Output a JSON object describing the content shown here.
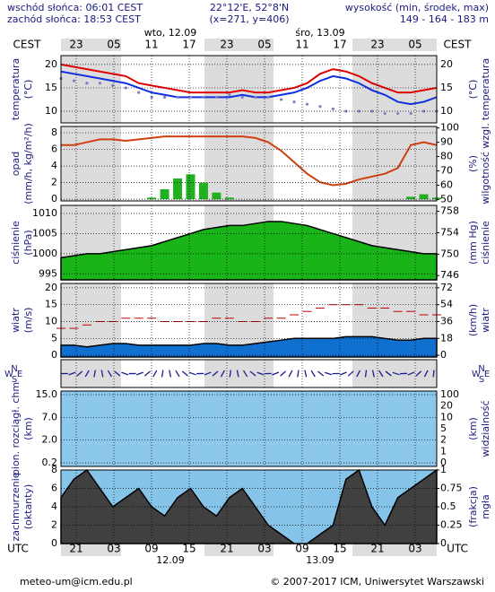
{
  "header": {
    "sunrise": "wschód słońca: 06:01 CEST",
    "sunset": "zachód słońca: 18:53 CEST",
    "coords": "22°12'E, 52°8'N",
    "grid_point": "(x=271, y=406)",
    "altitude_label": "wysokość (min, środek, max)",
    "altitude": "149 - 164 - 183 m"
  },
  "time_axis": {
    "top_zone": "CEST",
    "bottom_zone": "UTC",
    "top_hours": [
      "23",
      "05",
      "11",
      "17",
      "23",
      "05",
      "11",
      "17",
      "23",
      "05"
    ],
    "bottom_hours": [
      "21",
      "03",
      "09",
      "15",
      "21",
      "03",
      "09",
      "15",
      "21",
      "03"
    ],
    "top_days": [
      "wto, 12.09",
      "śro, 13.09"
    ],
    "bottom_days": [
      "12.09",
      "13.09"
    ]
  },
  "compass": [
    "N",
    "S",
    "W",
    "E"
  ],
  "panels": [
    {
      "left_label": [
        "temperatura",
        "(°C)"
      ],
      "right_label": [
        "(°C)",
        "temperatura"
      ],
      "background": "#ffffff",
      "ylim": [
        7.5,
        21.9
      ],
      "yticks": [
        20,
        15,
        10
      ],
      "series": [
        {
          "style": "line",
          "color": "#e00000",
          "values": [
            20,
            19.5,
            19,
            18.5,
            18,
            17.5,
            16,
            15.5,
            15,
            14.5,
            14,
            14,
            14,
            14,
            14.5,
            14,
            14,
            14.5,
            15,
            16,
            18,
            19,
            18.5,
            17.5,
            16,
            15,
            14,
            14,
            14.5,
            15
          ]
        },
        {
          "style": "line",
          "color": "#1030e0",
          "values": [
            18.5,
            18,
            17.5,
            17,
            16.5,
            16,
            15,
            14,
            13.5,
            13,
            13,
            13,
            13,
            13,
            13.5,
            13,
            13,
            13.5,
            14,
            15,
            16.5,
            17.5,
            17,
            16,
            14.5,
            13.5,
            12,
            11.5,
            12,
            13
          ]
        },
        {
          "style": "dots",
          "color": "#8080c0",
          "values": [
            17,
            16.5,
            16,
            16,
            15.5,
            15,
            14,
            13,
            13,
            13,
            13,
            13,
            13,
            13.5,
            13,
            13,
            13,
            12.5,
            12,
            11.5,
            11,
            10.5,
            10,
            10,
            10,
            9.5,
            9.5,
            9.5,
            10,
            10
          ]
        }
      ]
    },
    {
      "left_label": [
        "opad",
        "(mm/h, kg/m²/h)"
      ],
      "right_label": [
        "(%)",
        "wilgotność wzgl."
      ],
      "background": "#ffffff",
      "ylim": [
        -0.2,
        8.76
      ],
      "yticks": [
        8,
        6,
        4,
        2,
        0
      ],
      "y2lim": [
        49,
        101
      ],
      "y2ticks": [
        100,
        90,
        80,
        70,
        60,
        50
      ],
      "series": [
        {
          "style": "bars",
          "color": "#20b020",
          "values": [
            0,
            0,
            0,
            0,
            0,
            0,
            0,
            0.2,
            1.2,
            2.5,
            3,
            2,
            0.8,
            0.2,
            0,
            0,
            0,
            0,
            0,
            0,
            0,
            0,
            0,
            0,
            0,
            0,
            0,
            0.3,
            0.6,
            0.2
          ]
        },
        {
          "style": "line",
          "color": "#d04010",
          "axis": "y2",
          "values": [
            88,
            88,
            90,
            92,
            92,
            91,
            92,
            93,
            94,
            94,
            94,
            94,
            94,
            94,
            94,
            93,
            90,
            84,
            76,
            68,
            62,
            60,
            61,
            64,
            66,
            68,
            72,
            88,
            90,
            88
          ]
        }
      ]
    },
    {
      "left_label": [
        "ciśnienie",
        "(hPa)"
      ],
      "right_label": [
        "(mm Hg)",
        "ciśnienie"
      ],
      "background": "#ffffff",
      "ylim": [
        993.5,
        1012
      ],
      "yticks": [
        1010,
        1005,
        1000,
        995
      ],
      "y2lim": [
        745.2,
        759.1
      ],
      "y2ticks": [
        758,
        754,
        750,
        746
      ],
      "series": [
        {
          "style": "area",
          "color": "#18b418",
          "values": [
            999,
            999.5,
            1000,
            1000,
            1000.5,
            1001,
            1001.5,
            1002,
            1003,
            1004,
            1005,
            1006,
            1006.5,
            1007,
            1007,
            1007.5,
            1008,
            1008,
            1007.5,
            1007,
            1006,
            1005,
            1004,
            1003,
            1002,
            1001.5,
            1001,
            1000.5,
            1000,
            1000
          ]
        }
      ]
    },
    {
      "left_label": [
        "wiatr",
        "(m/s)"
      ],
      "right_label": [
        "(km/h)",
        "wiatr"
      ],
      "background": "#ffffff",
      "ylim": [
        -0.5,
        21.3
      ],
      "yticks": [
        20,
        15,
        10,
        5,
        0
      ],
      "y2lim": [
        -1.8,
        76.7
      ],
      "y2ticks": [
        72,
        54,
        36,
        18,
        0
      ],
      "series": [
        {
          "style": "area",
          "color": "#1070d0",
          "values": [
            3,
            3,
            2.5,
            3,
            3.5,
            3.5,
            3,
            3,
            3,
            3,
            3,
            3.5,
            3.5,
            3,
            3,
            3.5,
            4,
            4.5,
            5,
            5,
            5,
            5,
            5.5,
            5.5,
            5.5,
            5,
            4.5,
            4.5,
            5,
            5
          ]
        },
        {
          "style": "dashes",
          "color": "#c00000",
          "values": [
            8,
            8,
            9,
            10,
            10,
            11,
            11,
            11,
            10,
            10,
            10,
            10,
            11,
            11,
            10,
            10,
            11,
            11,
            12,
            13,
            14,
            15,
            15,
            15,
            14,
            14,
            13,
            13,
            12,
            12
          ]
        }
      ]
    },
    {
      "left_label": [],
      "right_label": [],
      "background": "#ffffff",
      "series": []
    },
    {
      "left_label": [
        "pion. rozciągł. chm",
        "(km)"
      ],
      "right_label": [
        "(km)",
        "widzialność"
      ],
      "background": "#8cc8ec",
      "left_tick_labels": [
        "15.0",
        "7.0",
        "2.0",
        "0.2"
      ],
      "right_tick_labels": [
        "100",
        "20",
        "10",
        "5",
        "2",
        "1",
        "0"
      ],
      "series": []
    },
    {
      "left_label": [
        "zachmurzenie",
        "(oktanty)"
      ],
      "right_label": [
        "(frakcja)",
        "mgła"
      ],
      "background": "#87c4ea",
      "ylim": [
        0,
        8
      ],
      "yticks": [
        8,
        6,
        4,
        2,
        0
      ],
      "y2lim": [
        0,
        1
      ],
      "y2ticks": [
        1,
        0.75,
        0.5,
        0.25,
        0
      ],
      "series": [
        {
          "style": "area",
          "color": "#404040",
          "values": [
            5,
            7,
            8,
            6,
            4,
            5,
            6,
            4,
            3,
            5,
            6,
            4,
            3,
            5,
            6,
            4,
            2,
            1,
            0,
            0,
            1,
            2,
            7,
            8,
            4,
            2,
            5,
            6,
            7,
            8
          ]
        }
      ]
    }
  ],
  "footer": {
    "email": "meteo-um@icm.edu.pl",
    "copyright": "© 2007-2017 ICM, Uniwersytet Warszawski"
  }
}
